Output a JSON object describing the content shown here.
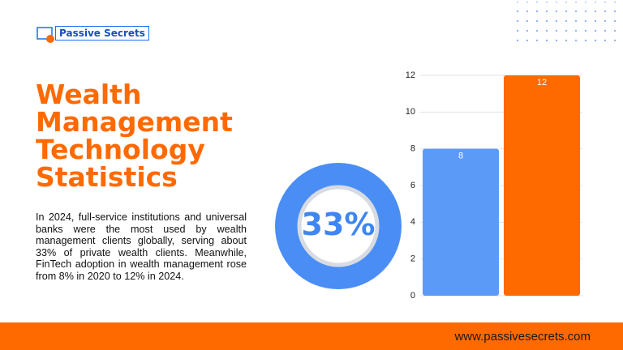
{
  "brand": "Passive Secrets",
  "title": "Wealth Management Technology Statistics",
  "body": "In 2024, full-service institutions and universal banks were the most used by wealth management clients globally, serving about 33% of private wealth clients. Meanwhile, FinTech adoption in wealth management rose from 8% in 2020 to 12% in 2024.",
  "stat_label": "33%",
  "footer": "www.passivesecrets.com",
  "chart_data": {
    "type": "bar",
    "categories": [
      null,
      null
    ],
    "values": [
      8,
      12
    ],
    "colors": [
      "#5b9bf7",
      "#ff6a00"
    ],
    "ylim": [
      0,
      12
    ],
    "yticks": [
      0,
      2,
      4,
      6,
      8,
      10,
      12
    ],
    "grid": true
  }
}
